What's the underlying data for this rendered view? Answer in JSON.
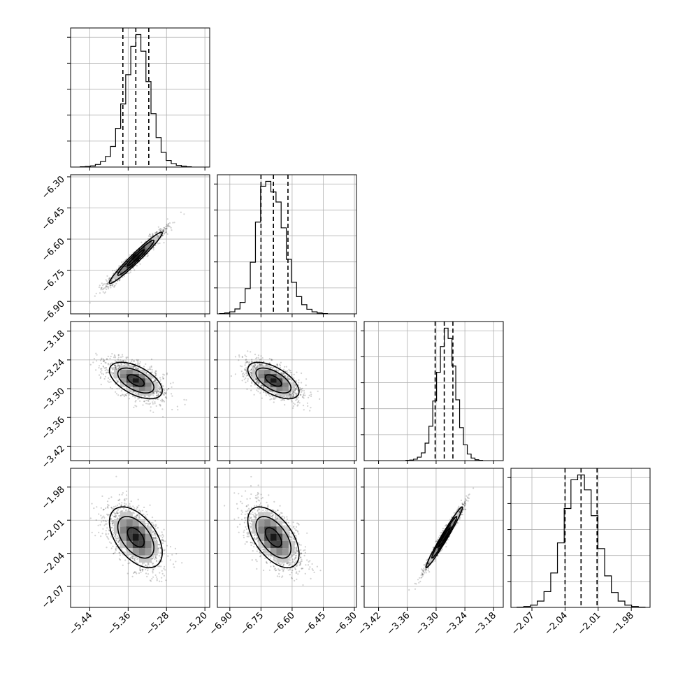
{
  "chart_data": {
    "type": "corner",
    "grid": true,
    "parameters": [
      {
        "range": [
          -5.48,
          -5.19
        ],
        "ticks": [
          "−5.44",
          "−5.36",
          "−5.28",
          "−5.20"
        ],
        "tick_values": [
          -5.44,
          -5.36,
          -5.28,
          -5.2
        ],
        "mean": -5.344,
        "sd": 0.029,
        "quantiles": [
          -5.371,
          -5.344,
          -5.317
        ],
        "hist_counts": [
          1,
          2,
          4,
          9,
          19,
          37,
          72,
          135,
          220,
          322,
          421,
          462,
          404,
          298,
          186,
          103,
          51,
          23,
          12,
          6,
          3,
          1
        ]
      },
      {
        "range": [
          -6.96,
          -6.29
        ],
        "ticks": [
          "−6.90",
          "−6.75",
          "−6.60",
          "−6.45",
          "−6.30"
        ],
        "tick_values": [
          -6.9,
          -6.75,
          -6.6,
          -6.45,
          -6.3
        ],
        "mean": -6.69,
        "sd": 0.065,
        "quantiles": [
          -6.75,
          -6.69,
          -6.62
        ],
        "hist_counts": [
          1,
          3,
          7,
          17,
          40,
          88,
          180,
          320,
          445,
          462,
          425,
          390,
          300,
          190,
          110,
          60,
          32,
          16,
          7,
          3,
          1
        ]
      },
      {
        "range": [
          -3.45,
          -3.16
        ],
        "ticks": [
          "−3.42",
          "−3.36",
          "−3.30",
          "−3.24",
          "−3.18"
        ],
        "tick_values": [
          -3.42,
          -3.36,
          -3.3,
          -3.24,
          -3.18
        ],
        "mean": -3.283,
        "sd": 0.02,
        "quantiles": [
          -3.302,
          -3.283,
          -3.265
        ],
        "hist_counts": [
          1,
          2,
          5,
          12,
          27,
          61,
          120,
          208,
          308,
          398,
          462,
          426,
          330,
          212,
          115,
          55,
          23,
          9,
          3,
          1
        ]
      },
      {
        "range": [
          -2.089,
          -1.963
        ],
        "ticks": [
          "−2.07",
          "−2.04",
          "−2.01",
          "−1.98"
        ],
        "tick_values": [
          -2.07,
          -2.04,
          -2.01,
          -1.98
        ],
        "mean": -2.0255,
        "sd": 0.0145,
        "quantiles": [
          -2.04,
          -2.0255,
          -2.011
        ],
        "hist_counts": [
          1,
          3,
          8,
          22,
          55,
          120,
          225,
          345,
          445,
          462,
          410,
          320,
          205,
          110,
          52,
          22,
          8,
          3,
          1
        ]
      }
    ],
    "correlations": [
      [
        1,
        0.97,
        -0.55,
        -0.5
      ],
      [
        0.97,
        1,
        -0.6,
        -0.55
      ],
      [
        -0.55,
        -0.6,
        1,
        0.98
      ],
      [
        -0.5,
        -0.55,
        0.98,
        1
      ]
    ]
  }
}
